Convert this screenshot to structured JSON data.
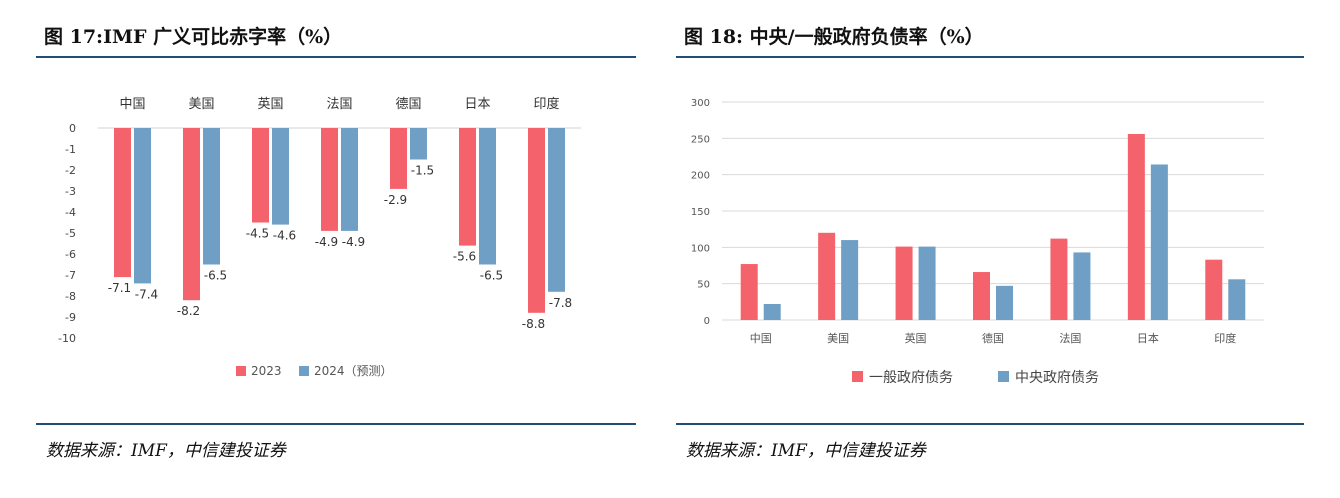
{
  "left_figure": {
    "title": "图 17:IMF 广义可比赤字率（%）",
    "source": "数据来源：IMF，中信建投证券"
  },
  "right_figure": {
    "title": "图 18:  中央/一般政府负债率（%）",
    "source": "数据来源：IMF，中信建投证券"
  },
  "colors": {
    "series1": "#f4636b",
    "series2": "#6f9fc4",
    "rule": "#1f4e79"
  },
  "chart_data": [
    {
      "type": "bar",
      "title": "IMF 广义可比赤字率（%）",
      "categories": [
        "中国",
        "美国",
        "英国",
        "法国",
        "德国",
        "日本",
        "印度"
      ],
      "series": [
        {
          "name": "2023",
          "values": [
            -7.1,
            -8.2,
            -4.5,
            -4.9,
            -2.9,
            -5.6,
            -8.8
          ]
        },
        {
          "name": "2024（预测）",
          "values": [
            -7.4,
            -6.5,
            -4.6,
            -4.9,
            -1.5,
            -6.5,
            -7.8
          ]
        }
      ],
      "ylim": [
        -10,
        0
      ],
      "yticks": [
        0,
        -1,
        -2,
        -3,
        -4,
        -5,
        -6,
        -7,
        -8,
        -9,
        -10
      ],
      "category_axis": "top",
      "legend": "bottom",
      "grid": false
    },
    {
      "type": "bar",
      "title": "中央/一般政府负债率（%）",
      "categories": [
        "中国",
        "美国",
        "英国",
        "德国",
        "法国",
        "日本",
        "印度"
      ],
      "series": [
        {
          "name": "一般政府债务",
          "values": [
            77,
            120,
            101,
            66,
            112,
            256,
            83
          ]
        },
        {
          "name": "中央政府债务",
          "values": [
            22,
            110,
            101,
            47,
            93,
            214,
            56
          ]
        }
      ],
      "ylim": [
        0,
        300
      ],
      "yticks": [
        0,
        50,
        100,
        150,
        200,
        250,
        300
      ],
      "legend": "bottom",
      "grid": true
    }
  ]
}
